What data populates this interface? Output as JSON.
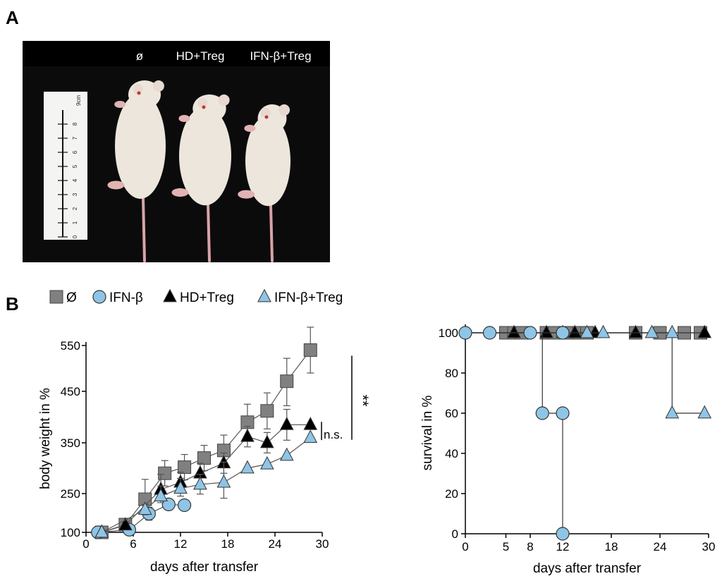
{
  "panel_a": {
    "label": "A",
    "group_labels": [
      "ø",
      "HD+Treg",
      "IFN-β+Treg"
    ],
    "ruler_unit": "9cm",
    "ruler_ticks": [
      "0",
      "1",
      "2",
      "3",
      "4",
      "5",
      "6",
      "7",
      "8"
    ]
  },
  "panel_b": {
    "label": "B"
  },
  "colors": {
    "none": "#808080",
    "ifnb": "#8ec5e6",
    "hd_treg": "#000000",
    "ifnb_treg": "#8ec5e6",
    "photo_bg": "#0b0b0b",
    "mouse": "#ece6dc"
  },
  "chart_data": [
    {
      "type": "line",
      "xlabel": "days after transfer",
      "ylabel": "body weight  in %",
      "xlim": [
        0,
        30
      ],
      "ylim": [
        100,
        550
      ],
      "xticks": [
        0,
        6,
        12,
        18,
        24,
        30
      ],
      "yticks": [
        100,
        250,
        350,
        450,
        550
      ],
      "legend": [
        {
          "name": "Ø",
          "marker": "square",
          "color": "#808080"
        },
        {
          "name": "IFN-β",
          "marker": "circle",
          "color": "#8ec5e6"
        },
        {
          "name": "HD+Treg",
          "marker": "triangle",
          "color": "#000000"
        },
        {
          "name": "IFN-β+Treg",
          "marker": "triangle",
          "color": "#8ec5e6"
        }
      ],
      "series": [
        {
          "name": "Ø",
          "marker": "square",
          "color": "#808080",
          "x": [
            2,
            5,
            7.5,
            10,
            12.5,
            15,
            17.5,
            20.5,
            23,
            25.5,
            28.5
          ],
          "y": [
            100,
            130,
            228,
            290,
            302,
            320,
            335,
            390,
            412,
            472,
            540
          ],
          "err": [
            0,
            10,
            50,
            25,
            25,
            25,
            30,
            35,
            35,
            50,
            50
          ]
        },
        {
          "name": "IFN-β",
          "marker": "circle",
          "color": "#8ec5e6",
          "x": [
            1.5,
            5.5,
            8,
            10.5,
            12.5
          ],
          "y": [
            100,
            110,
            172,
            208,
            205
          ],
          "err": [
            0,
            10,
            25,
            20,
            0
          ]
        },
        {
          "name": "HD+Treg",
          "marker": "triangle",
          "color": "#000000",
          "x": [
            2,
            5,
            9.5,
            12,
            14.5,
            17.5,
            20.5,
            23,
            25.5,
            28.5
          ],
          "y": [
            100,
            128,
            258,
            272,
            290,
            310,
            362,
            350,
            385,
            385
          ],
          "err": [
            0,
            10,
            30,
            20,
            20,
            20,
            20,
            20,
            30,
            0
          ]
        },
        {
          "name": "IFN-β+Treg",
          "marker": "triangle",
          "color": "#8ec5e6",
          "x": [
            2,
            7.5,
            9.5,
            12,
            14.5,
            17.5,
            20.5,
            23,
            25.5,
            28.5
          ],
          "y": [
            100,
            188,
            240,
            260,
            268,
            272,
            300,
            308,
            325,
            360
          ],
          "err": [
            0,
            20,
            25,
            20,
            20,
            40,
            0,
            0,
            0,
            0
          ]
        }
      ],
      "annotations": [
        {
          "text": "n.s.",
          "between": [
            "HD+Treg",
            "IFN-β+Treg"
          ],
          "y_range": [
            358,
            388
          ]
        },
        {
          "text": "**",
          "between": [
            "Ø",
            "IFN-β+Treg"
          ],
          "y_range": [
            360,
            540
          ]
        }
      ]
    },
    {
      "type": "line",
      "xlabel": "days after transfer",
      "ylabel": "survival in %",
      "xlim": [
        0,
        30
      ],
      "ylim": [
        0,
        100
      ],
      "xticks": [
        0,
        5,
        8,
        12,
        18,
        24,
        30
      ],
      "yticks": [
        0,
        20,
        40,
        60,
        80,
        100
      ],
      "series": [
        {
          "name": "Ø",
          "marker": "square",
          "color": "#808080",
          "step": true,
          "x": [
            0,
            29.5
          ],
          "y": [
            100,
            100
          ],
          "markers_x": [
            5,
            6,
            7,
            10,
            11,
            13,
            14,
            15,
            21,
            24,
            27,
            29
          ],
          "markers_y": [
            100,
            100,
            100,
            100,
            100,
            100,
            100,
            100,
            100,
            100,
            100,
            100
          ]
        },
        {
          "name": "HD+Treg",
          "marker": "triangle",
          "color": "#000000",
          "step": true,
          "x": [
            0,
            29.5
          ],
          "y": [
            100,
            100
          ],
          "markers_x": [
            6,
            10,
            13.5,
            16,
            21,
            29.5
          ],
          "markers_y": [
            100,
            100,
            100,
            100,
            100,
            100
          ]
        },
        {
          "name": "IFN-β+Treg",
          "marker": "triangle",
          "color": "#8ec5e6",
          "step": true,
          "x": [
            0,
            25.5,
            25.5,
            29.5
          ],
          "y": [
            100,
            100,
            60,
            60
          ],
          "markers_x": [
            12,
            15,
            17,
            23,
            25.5,
            25.5,
            29.5
          ],
          "markers_y": [
            100,
            100,
            100,
            100,
            100,
            60,
            60
          ]
        },
        {
          "name": "IFN-β",
          "marker": "circle",
          "color": "#8ec5e6",
          "step": true,
          "x": [
            0,
            9.5,
            9.5,
            12,
            12
          ],
          "y": [
            100,
            100,
            60,
            60,
            0
          ],
          "markers_x": [
            0,
            3,
            8,
            12,
            9.5,
            12,
            12
          ],
          "markers_y": [
            100,
            100,
            100,
            100,
            60,
            60,
            0
          ]
        }
      ]
    }
  ]
}
